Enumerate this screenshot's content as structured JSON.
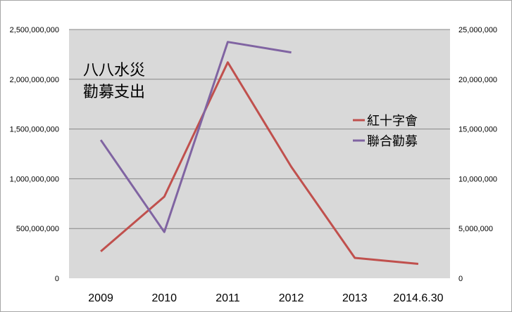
{
  "chart_data": {
    "type": "line",
    "title_lines": [
      "八八水災",
      "勸募支出"
    ],
    "categories": [
      "2009",
      "2010",
      "2011",
      "2012",
      "2013",
      "2014.6.30"
    ],
    "series": [
      {
        "name": "紅十字會",
        "axis": "left",
        "color": "#c0504d",
        "values": [
          270000000,
          820000000,
          2170000000,
          1120000000,
          205000000,
          145000000
        ]
      },
      {
        "name": "聯合勸募",
        "axis": "right",
        "color": "#8064a2",
        "values": [
          13900000,
          4650000,
          23750000,
          22700000,
          null,
          null
        ]
      }
    ],
    "left_axis": {
      "ylim": [
        0,
        2500000000
      ],
      "tick_labels": [
        "0",
        "500,000,000",
        "1,000,000,000",
        "1,500,000,000",
        "2,000,000,000",
        "2,500,000,000"
      ]
    },
    "right_axis": {
      "ylim": [
        0,
        25000000
      ],
      "tick_labels": [
        "0",
        "5,000,000",
        "10,000,000",
        "15,000,000",
        "20,000,000",
        "25,000,000"
      ]
    },
    "grid": true,
    "legend_position": "right",
    "plot_background": "#d9d9d9",
    "gridline_color": "#878787"
  }
}
